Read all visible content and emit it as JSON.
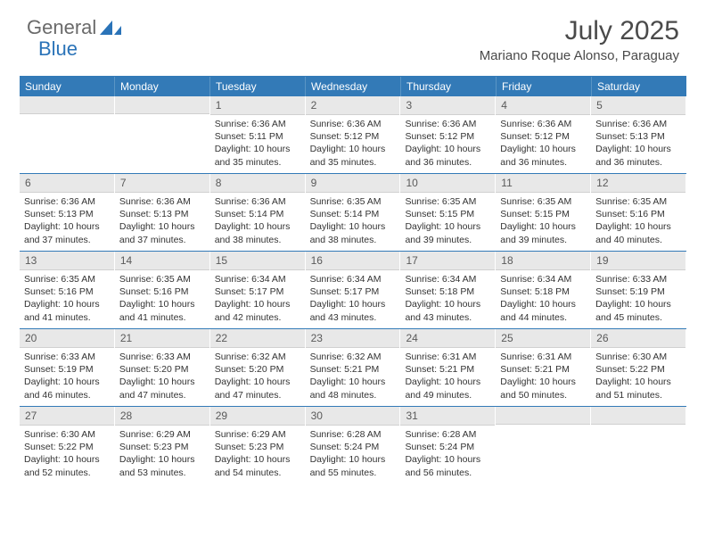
{
  "brand": {
    "general": "General",
    "blue": "Blue"
  },
  "title": "July 2025",
  "location": "Mariano Roque Alonso, Paraguay",
  "colors": {
    "header_bg": "#337ab7",
    "header_text": "#ffffff",
    "daynum_bg": "#e8e8e8",
    "body_text": "#333333",
    "brand_gray": "#6a6a6a",
    "brand_blue": "#2a73b8"
  },
  "day_headers": [
    "Sunday",
    "Monday",
    "Tuesday",
    "Wednesday",
    "Thursday",
    "Friday",
    "Saturday"
  ],
  "weeks": [
    [
      {
        "n": "",
        "sunrise": "",
        "sunset": "",
        "daylight": ""
      },
      {
        "n": "",
        "sunrise": "",
        "sunset": "",
        "daylight": ""
      },
      {
        "n": "1",
        "sunrise": "Sunrise: 6:36 AM",
        "sunset": "Sunset: 5:11 PM",
        "daylight": "Daylight: 10 hours and 35 minutes."
      },
      {
        "n": "2",
        "sunrise": "Sunrise: 6:36 AM",
        "sunset": "Sunset: 5:12 PM",
        "daylight": "Daylight: 10 hours and 35 minutes."
      },
      {
        "n": "3",
        "sunrise": "Sunrise: 6:36 AM",
        "sunset": "Sunset: 5:12 PM",
        "daylight": "Daylight: 10 hours and 36 minutes."
      },
      {
        "n": "4",
        "sunrise": "Sunrise: 6:36 AM",
        "sunset": "Sunset: 5:12 PM",
        "daylight": "Daylight: 10 hours and 36 minutes."
      },
      {
        "n": "5",
        "sunrise": "Sunrise: 6:36 AM",
        "sunset": "Sunset: 5:13 PM",
        "daylight": "Daylight: 10 hours and 36 minutes."
      }
    ],
    [
      {
        "n": "6",
        "sunrise": "Sunrise: 6:36 AM",
        "sunset": "Sunset: 5:13 PM",
        "daylight": "Daylight: 10 hours and 37 minutes."
      },
      {
        "n": "7",
        "sunrise": "Sunrise: 6:36 AM",
        "sunset": "Sunset: 5:13 PM",
        "daylight": "Daylight: 10 hours and 37 minutes."
      },
      {
        "n": "8",
        "sunrise": "Sunrise: 6:36 AM",
        "sunset": "Sunset: 5:14 PM",
        "daylight": "Daylight: 10 hours and 38 minutes."
      },
      {
        "n": "9",
        "sunrise": "Sunrise: 6:35 AM",
        "sunset": "Sunset: 5:14 PM",
        "daylight": "Daylight: 10 hours and 38 minutes."
      },
      {
        "n": "10",
        "sunrise": "Sunrise: 6:35 AM",
        "sunset": "Sunset: 5:15 PM",
        "daylight": "Daylight: 10 hours and 39 minutes."
      },
      {
        "n": "11",
        "sunrise": "Sunrise: 6:35 AM",
        "sunset": "Sunset: 5:15 PM",
        "daylight": "Daylight: 10 hours and 39 minutes."
      },
      {
        "n": "12",
        "sunrise": "Sunrise: 6:35 AM",
        "sunset": "Sunset: 5:16 PM",
        "daylight": "Daylight: 10 hours and 40 minutes."
      }
    ],
    [
      {
        "n": "13",
        "sunrise": "Sunrise: 6:35 AM",
        "sunset": "Sunset: 5:16 PM",
        "daylight": "Daylight: 10 hours and 41 minutes."
      },
      {
        "n": "14",
        "sunrise": "Sunrise: 6:35 AM",
        "sunset": "Sunset: 5:16 PM",
        "daylight": "Daylight: 10 hours and 41 minutes."
      },
      {
        "n": "15",
        "sunrise": "Sunrise: 6:34 AM",
        "sunset": "Sunset: 5:17 PM",
        "daylight": "Daylight: 10 hours and 42 minutes."
      },
      {
        "n": "16",
        "sunrise": "Sunrise: 6:34 AM",
        "sunset": "Sunset: 5:17 PM",
        "daylight": "Daylight: 10 hours and 43 minutes."
      },
      {
        "n": "17",
        "sunrise": "Sunrise: 6:34 AM",
        "sunset": "Sunset: 5:18 PM",
        "daylight": "Daylight: 10 hours and 43 minutes."
      },
      {
        "n": "18",
        "sunrise": "Sunrise: 6:34 AM",
        "sunset": "Sunset: 5:18 PM",
        "daylight": "Daylight: 10 hours and 44 minutes."
      },
      {
        "n": "19",
        "sunrise": "Sunrise: 6:33 AM",
        "sunset": "Sunset: 5:19 PM",
        "daylight": "Daylight: 10 hours and 45 minutes."
      }
    ],
    [
      {
        "n": "20",
        "sunrise": "Sunrise: 6:33 AM",
        "sunset": "Sunset: 5:19 PM",
        "daylight": "Daylight: 10 hours and 46 minutes."
      },
      {
        "n": "21",
        "sunrise": "Sunrise: 6:33 AM",
        "sunset": "Sunset: 5:20 PM",
        "daylight": "Daylight: 10 hours and 47 minutes."
      },
      {
        "n": "22",
        "sunrise": "Sunrise: 6:32 AM",
        "sunset": "Sunset: 5:20 PM",
        "daylight": "Daylight: 10 hours and 47 minutes."
      },
      {
        "n": "23",
        "sunrise": "Sunrise: 6:32 AM",
        "sunset": "Sunset: 5:21 PM",
        "daylight": "Daylight: 10 hours and 48 minutes."
      },
      {
        "n": "24",
        "sunrise": "Sunrise: 6:31 AM",
        "sunset": "Sunset: 5:21 PM",
        "daylight": "Daylight: 10 hours and 49 minutes."
      },
      {
        "n": "25",
        "sunrise": "Sunrise: 6:31 AM",
        "sunset": "Sunset: 5:21 PM",
        "daylight": "Daylight: 10 hours and 50 minutes."
      },
      {
        "n": "26",
        "sunrise": "Sunrise: 6:30 AM",
        "sunset": "Sunset: 5:22 PM",
        "daylight": "Daylight: 10 hours and 51 minutes."
      }
    ],
    [
      {
        "n": "27",
        "sunrise": "Sunrise: 6:30 AM",
        "sunset": "Sunset: 5:22 PM",
        "daylight": "Daylight: 10 hours and 52 minutes."
      },
      {
        "n": "28",
        "sunrise": "Sunrise: 6:29 AM",
        "sunset": "Sunset: 5:23 PM",
        "daylight": "Daylight: 10 hours and 53 minutes."
      },
      {
        "n": "29",
        "sunrise": "Sunrise: 6:29 AM",
        "sunset": "Sunset: 5:23 PM",
        "daylight": "Daylight: 10 hours and 54 minutes."
      },
      {
        "n": "30",
        "sunrise": "Sunrise: 6:28 AM",
        "sunset": "Sunset: 5:24 PM",
        "daylight": "Daylight: 10 hours and 55 minutes."
      },
      {
        "n": "31",
        "sunrise": "Sunrise: 6:28 AM",
        "sunset": "Sunset: 5:24 PM",
        "daylight": "Daylight: 10 hours and 56 minutes."
      },
      {
        "n": "",
        "sunrise": "",
        "sunset": "",
        "daylight": ""
      },
      {
        "n": "",
        "sunrise": "",
        "sunset": "",
        "daylight": ""
      }
    ]
  ]
}
